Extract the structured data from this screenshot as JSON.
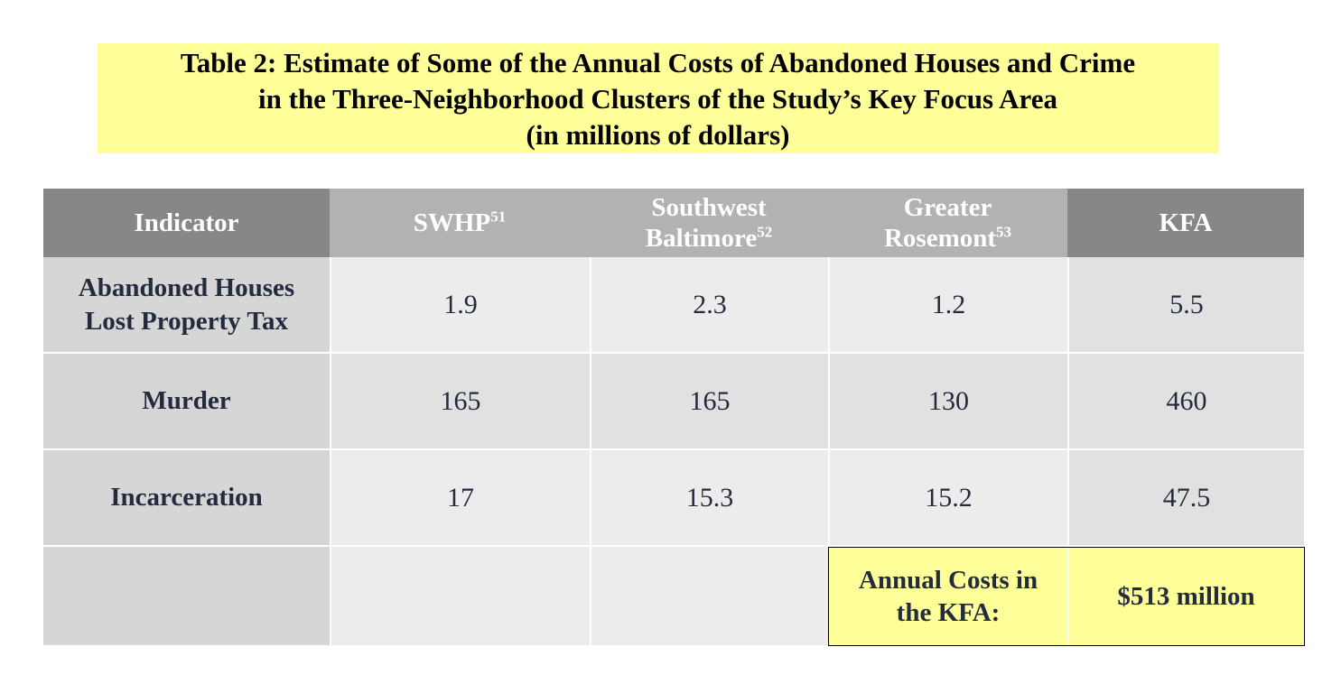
{
  "title": {
    "line1": "Table 2: Estimate of Some of the Annual Costs of Abandoned Houses and Crime",
    "line2": "in the Three-Neighborhood Clusters of the Study’s Key Focus Area",
    "line3": "(in millions of dollars)"
  },
  "header": {
    "indicator": "Indicator",
    "swhp": "SWHP",
    "swhp_note": "51",
    "southwest_line1": "Southwest",
    "southwest_line2": "Baltimore",
    "southwest_note": "52",
    "rosemont_line1": "Greater",
    "rosemont_line2": "Rosemont",
    "rosemont_note": "53",
    "kfa": "KFA"
  },
  "rows": [
    {
      "label_line1": "Abandoned Houses",
      "label_line2": "Lost Property Tax",
      "swhp": "1.9",
      "southwest": "2.3",
      "rosemont": "1.2",
      "kfa": "5.5"
    },
    {
      "label_line1": "Murder",
      "swhp": "165",
      "southwest": "165",
      "rosemont": "130",
      "kfa": "460"
    },
    {
      "label_line1": "Incarceration",
      "swhp": "17",
      "southwest": "15.3",
      "rosemont": "15.2",
      "kfa": "47.5"
    }
  ],
  "total": {
    "label_line1": "Annual Costs in",
    "label_line2": "the KFA:",
    "value": "$513 million"
  },
  "colors": {
    "title_background": "#ffff99",
    "header_dark": "#878787",
    "header_light": "#b2b2b2",
    "label_column": "#d6d6d6",
    "cell_light": "#ececec",
    "cell_dark": "#e1e1e1",
    "text": "#232b3d"
  }
}
